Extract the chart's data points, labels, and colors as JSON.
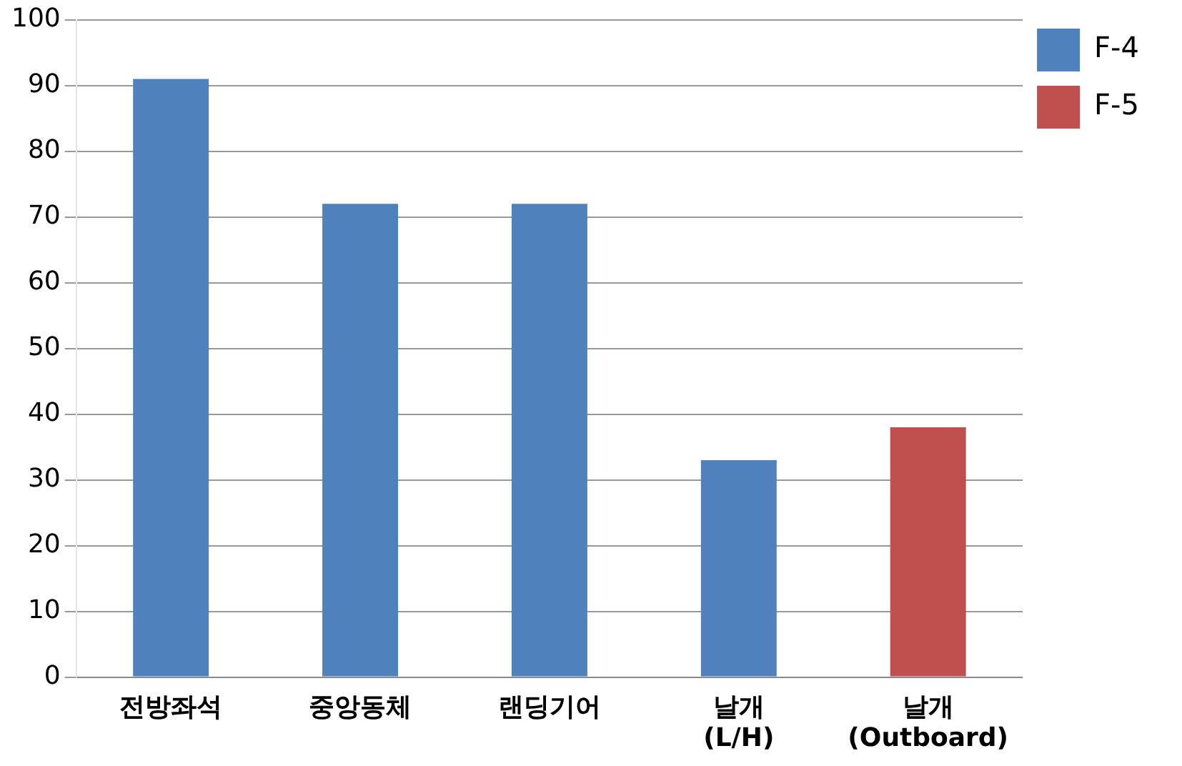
{
  "chart_data": {
    "type": "bar",
    "categories": [
      "전방좌석",
      "중앙동체",
      "랜딩기어",
      "날개\n(L/H)",
      "날개\n(Outboard)"
    ],
    "series": [
      {
        "name": "F-4",
        "color": "#4f81bd",
        "values": [
          91,
          72,
          72,
          33,
          null
        ]
      },
      {
        "name": "F-5",
        "color": "#c0504d",
        "values": [
          null,
          null,
          null,
          null,
          38
        ]
      }
    ],
    "ylim": [
      0,
      100
    ],
    "yticks": [
      0,
      10,
      20,
      30,
      40,
      50,
      60,
      70,
      80,
      90,
      100
    ],
    "grid": "y",
    "legend": "top right"
  }
}
